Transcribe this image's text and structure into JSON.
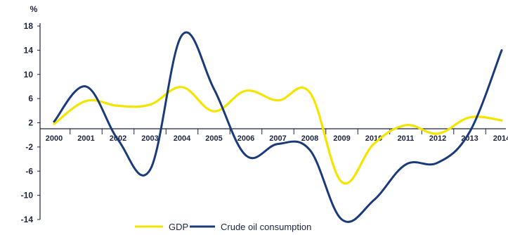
{
  "chart_data": {
    "type": "line",
    "unit_label": "%",
    "categories": [
      "2000",
      "2001",
      "2002",
      "2003",
      "2004",
      "2005",
      "2006",
      "2007",
      "2008",
      "2009",
      "2010",
      "2011",
      "2012",
      "2013",
      "2014"
    ],
    "y_ticks": [
      18,
      14,
      10,
      6,
      2,
      -2,
      -6,
      -10,
      -14
    ],
    "ylim": [
      -14,
      18
    ],
    "grid": false,
    "legend_position": "bottom",
    "series": [
      {
        "name": "GDP",
        "color": "#f4e500",
        "values": [
          1.8,
          5.6,
          4.8,
          5.0,
          7.9,
          3.9,
          7.3,
          5.7,
          7.0,
          -7.8,
          -1.5,
          1.6,
          0.2,
          2.9,
          2.4
        ]
      },
      {
        "name": "Crude oil consumption",
        "color": "#1a3a7a",
        "values": [
          2.2,
          8.0,
          -0.8,
          -5.8,
          16.5,
          7.6,
          -3.4,
          -1.5,
          -2.5,
          -14.0,
          -10.8,
          -4.9,
          -4.6,
          0.5,
          14.0
        ]
      }
    ]
  }
}
